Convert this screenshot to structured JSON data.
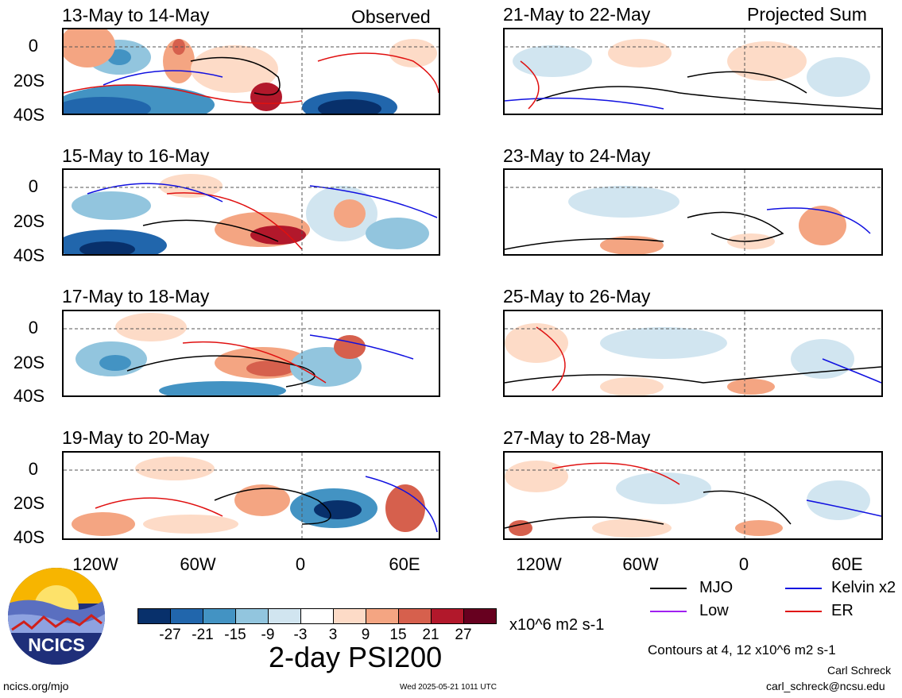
{
  "headers": {
    "observed": "Observed",
    "projected": "Projected Sum"
  },
  "panels": [
    {
      "date": "13-May to 14-May"
    },
    {
      "date": "15-May to 16-May"
    },
    {
      "date": "17-May to 18-May"
    },
    {
      "date": "19-May to 20-May"
    },
    {
      "date": "21-May to 22-May"
    },
    {
      "date": "23-May to 24-May"
    },
    {
      "date": "25-May to 26-May"
    },
    {
      "date": "27-May to 28-May"
    }
  ],
  "y_ticks": [
    "0",
    "20S",
    "40S"
  ],
  "x_ticks": [
    "120W",
    "60W",
    "0",
    "60E"
  ],
  "legend": [
    {
      "label": "MJO",
      "color": "#000000"
    },
    {
      "label": "Kelvin x2",
      "color": "#1010e0"
    },
    {
      "label": "Low",
      "color": "#a020f0"
    },
    {
      "label": "ER",
      "color": "#e01010"
    }
  ],
  "colorbar": {
    "colors": [
      "#08306b",
      "#2166ac",
      "#4393c3",
      "#92c5de",
      "#d1e5f0",
      "#ffffff",
      "#fddbc7",
      "#f4a582",
      "#d6604d",
      "#b2182b",
      "#67001f"
    ],
    "labels": [
      "-27",
      "-21",
      "-15",
      "-9",
      "-3",
      "3",
      "9",
      "15",
      "21",
      "27"
    ],
    "units": "x10^6 m2 s-1"
  },
  "main_title": "2-day PSI200",
  "contours_note": "Contours at 4, 12 x10^6 m2 s-1",
  "author": "Carl Schreck",
  "email": "carl_schreck@ncsu.edu",
  "site": "ncics.org/mjo",
  "timestamp": "Wed 2025-05-21 1011 UTC",
  "logo_text": "NCICS"
}
